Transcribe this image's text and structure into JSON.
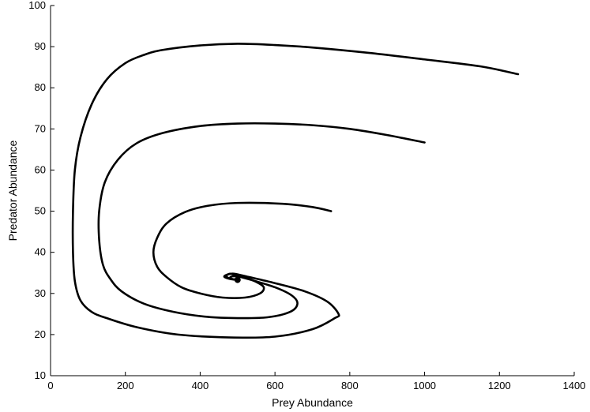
{
  "chart_data": {
    "type": "line",
    "title": "",
    "xlabel": "Prey Abundance",
    "ylabel": "Predator Abundance",
    "xlim": [
      0,
      1400
    ],
    "ylim": [
      10,
      100
    ],
    "xticks": [
      0,
      200,
      400,
      600,
      800,
      1000,
      1200,
      1400
    ],
    "yticks": [
      10,
      20,
      30,
      40,
      50,
      60,
      70,
      80,
      90,
      100
    ],
    "grid": false,
    "legend": "none",
    "line_color": "#000000",
    "equilibrium_point": {
      "x": 500,
      "y": 33.3
    },
    "series": [
      {
        "points": [
          [
            1250,
            83.3
          ],
          [
            1150,
            85.2
          ],
          [
            1000,
            86.9
          ],
          [
            850,
            88.5
          ],
          [
            700,
            89.8
          ],
          [
            600,
            90.4
          ],
          [
            500,
            90.7
          ],
          [
            400,
            90.3
          ],
          [
            300,
            89.2
          ],
          [
            250,
            88.0
          ],
          [
            200,
            86.0
          ],
          [
            150,
            82.0
          ],
          [
            110,
            76.0
          ],
          [
            80,
            68.0
          ],
          [
            65,
            60.0
          ],
          [
            60,
            50.0
          ],
          [
            60,
            40.0
          ],
          [
            65,
            33.0
          ],
          [
            80,
            28.3
          ],
          [
            110,
            25.5
          ],
          [
            150,
            24.0
          ],
          [
            230,
            21.8
          ],
          [
            340,
            20.0
          ],
          [
            480,
            19.3
          ],
          [
            600,
            19.5
          ],
          [
            700,
            21.3
          ],
          [
            760,
            24.0
          ],
          [
            770,
            25.0
          ],
          [
            740,
            28.0
          ],
          [
            680,
            30.5
          ],
          [
            600,
            32.5
          ],
          [
            530,
            34.0
          ],
          [
            490,
            34.8
          ],
          [
            470,
            34.5
          ],
          [
            465,
            34.0
          ],
          [
            480,
            33.5
          ],
          [
            500,
            33.3
          ]
        ]
      },
      {
        "points": [
          [
            1000,
            66.7
          ],
          [
            900,
            68.5
          ],
          [
            800,
            70.0
          ],
          [
            700,
            70.9
          ],
          [
            600,
            71.3
          ],
          [
            500,
            71.3
          ],
          [
            400,
            70.7
          ],
          [
            300,
            69.0
          ],
          [
            230,
            66.5
          ],
          [
            180,
            62.5
          ],
          [
            145,
            57.0
          ],
          [
            130,
            50.0
          ],
          [
            130,
            43.0
          ],
          [
            140,
            37.0
          ],
          [
            160,
            33.5
          ],
          [
            190,
            30.5
          ],
          [
            250,
            27.5
          ],
          [
            330,
            25.5
          ],
          [
            420,
            24.3
          ],
          [
            500,
            24.0
          ],
          [
            580,
            24.2
          ],
          [
            640,
            25.5
          ],
          [
            660,
            27.5
          ],
          [
            645,
            29.5
          ],
          [
            600,
            31.5
          ],
          [
            540,
            33.2
          ],
          [
            500,
            34.2
          ],
          [
            480,
            34.8
          ],
          [
            470,
            34.2
          ],
          [
            480,
            33.6
          ],
          [
            500,
            33.3
          ]
        ]
      },
      {
        "points": [
          [
            750,
            50.0
          ],
          [
            700,
            51.0
          ],
          [
            620,
            51.8
          ],
          [
            500,
            52.0
          ],
          [
            420,
            51.3
          ],
          [
            360,
            49.8
          ],
          [
            310,
            47.0
          ],
          [
            285,
            43.5
          ],
          [
            275,
            40.0
          ],
          [
            285,
            36.5
          ],
          [
            310,
            34.0
          ],
          [
            350,
            31.5
          ],
          [
            400,
            30.0
          ],
          [
            460,
            29.0
          ],
          [
            520,
            29.0
          ],
          [
            560,
            30.0
          ],
          [
            570,
            31.5
          ],
          [
            550,
            32.8
          ],
          [
            520,
            33.8
          ],
          [
            490,
            34.2
          ],
          [
            480,
            33.8
          ],
          [
            490,
            33.4
          ],
          [
            500,
            33.3
          ]
        ]
      }
    ]
  }
}
